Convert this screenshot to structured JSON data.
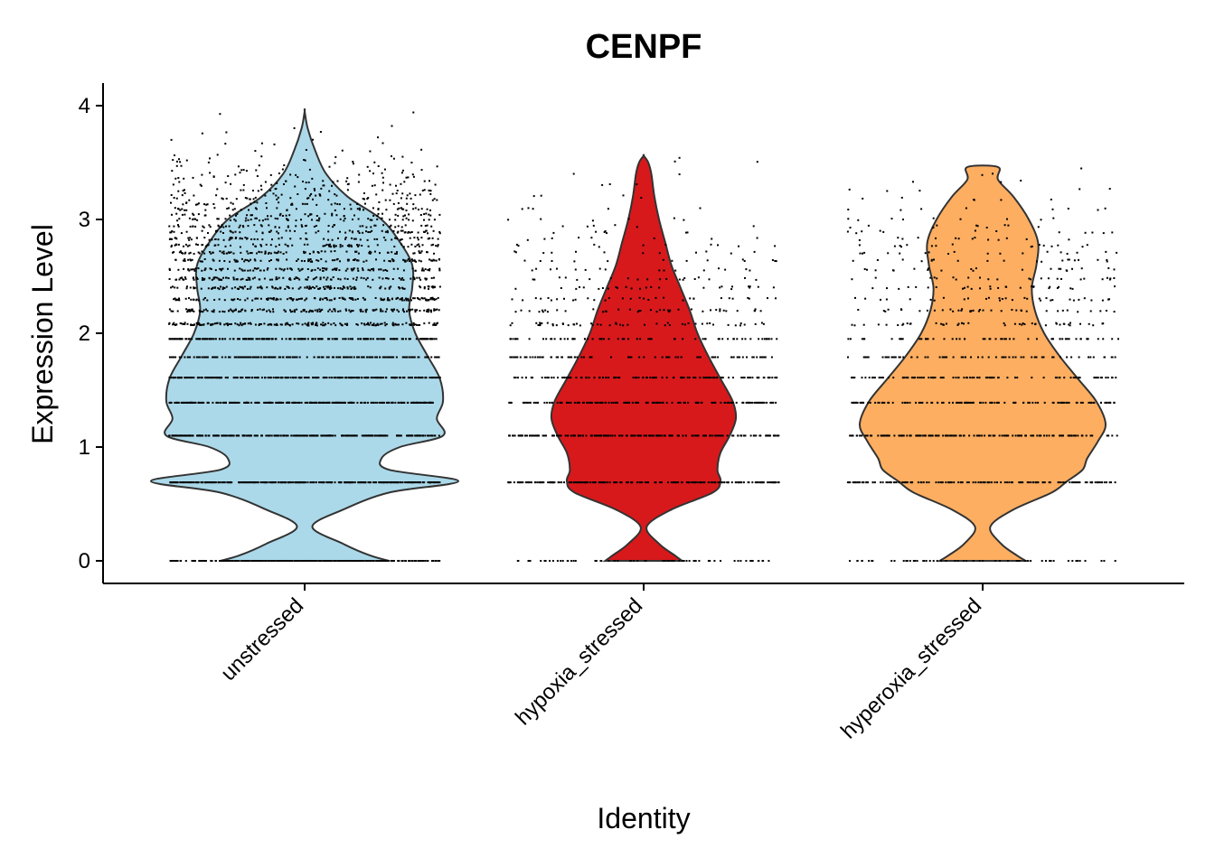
{
  "chart_data": {
    "type": "violin",
    "title": "CENPF",
    "xlabel": "Identity",
    "ylabel": "Expression Level",
    "ylim": [
      -0.2,
      4.2
    ],
    "yticks": [
      0,
      1,
      2,
      3,
      4
    ],
    "categories": [
      "unstressed",
      "hypoxia_stressed",
      "hyperoxia_stressed"
    ],
    "colors": [
      "#ABD9E9",
      "#D7191C",
      "#FDAE61"
    ],
    "outline_color": "#333333",
    "x_tick_rotation_deg": 45,
    "grid": false,
    "legend": "none",
    "violins": [
      {
        "name": "unstressed",
        "ymax": 3.95,
        "density": [
          [
            0,
            0.55
          ],
          [
            0.05,
            0.42
          ],
          [
            0.15,
            0.25
          ],
          [
            0.3,
            0.05
          ],
          [
            0.45,
            0.25
          ],
          [
            0.6,
            0.55
          ],
          [
            0.7,
            1.0
          ],
          [
            0.8,
            0.55
          ],
          [
            0.9,
            0.5
          ],
          [
            1.0,
            0.62
          ],
          [
            1.1,
            0.9
          ],
          [
            1.25,
            0.86
          ],
          [
            1.4,
            0.9
          ],
          [
            1.6,
            0.88
          ],
          [
            1.8,
            0.8
          ],
          [
            2.0,
            0.72
          ],
          [
            2.2,
            0.68
          ],
          [
            2.4,
            0.7
          ],
          [
            2.6,
            0.7
          ],
          [
            2.8,
            0.62
          ],
          [
            3.0,
            0.5
          ],
          [
            3.2,
            0.28
          ],
          [
            3.4,
            0.14
          ],
          [
            3.6,
            0.07
          ],
          [
            3.8,
            0.02
          ],
          [
            3.95,
            0
          ]
        ],
        "points": [
          {
            "y": 0.0,
            "n": 300
          },
          {
            "y": 0.69,
            "n": 320
          },
          {
            "y": 1.1,
            "n": 290
          },
          {
            "y": 1.39,
            "n": 260
          },
          {
            "y": 1.61,
            "n": 230
          },
          {
            "y": 1.79,
            "n": 210
          },
          {
            "y": 1.95,
            "n": 190
          },
          {
            "y": 2.08,
            "n": 170
          },
          {
            "y": 2.2,
            "n": 150
          },
          {
            "y": 2.3,
            "n": 140
          },
          {
            "y": 2.4,
            "n": 130
          },
          {
            "y": 2.48,
            "n": 120
          },
          {
            "y": 2.56,
            "n": 110
          },
          {
            "y": 2.64,
            "n": 100
          },
          {
            "y": 2.71,
            "n": 90
          },
          {
            "y": 2.77,
            "n": 80
          },
          {
            "y": 2.83,
            "n": 75
          },
          {
            "y": 2.89,
            "n": 70
          },
          {
            "y": 2.94,
            "n": 62
          },
          {
            "y": 3.0,
            "n": 55
          },
          {
            "y": 3.04,
            "n": 50
          },
          {
            "y": 3.09,
            "n": 45
          },
          {
            "y": 3.14,
            "n": 38
          },
          {
            "y": 3.18,
            "n": 32
          },
          {
            "y": 3.22,
            "n": 28
          },
          {
            "y": 3.26,
            "n": 24
          },
          {
            "y": 3.3,
            "n": 20
          },
          {
            "y": 3.33,
            "n": 18
          },
          {
            "y": 3.37,
            "n": 15
          },
          {
            "y": 3.4,
            "n": 13
          },
          {
            "y": 3.43,
            "n": 11
          },
          {
            "y": 3.47,
            "n": 9
          },
          {
            "y": 3.5,
            "n": 8
          },
          {
            "y": 3.53,
            "n": 7
          },
          {
            "y": 3.56,
            "n": 6
          },
          {
            "y": 3.61,
            "n": 5
          },
          {
            "y": 3.66,
            "n": 4
          },
          {
            "y": 3.71,
            "n": 3
          },
          {
            "y": 3.76,
            "n": 3
          },
          {
            "y": 3.81,
            "n": 2
          },
          {
            "y": 3.93,
            "n": 2
          }
        ]
      },
      {
        "name": "hypoxia_stressed",
        "ymax": 3.56,
        "density": [
          [
            0,
            0.25
          ],
          [
            0.05,
            0.2
          ],
          [
            0.15,
            0.1
          ],
          [
            0.3,
            0.02
          ],
          [
            0.45,
            0.18
          ],
          [
            0.6,
            0.45
          ],
          [
            0.7,
            0.5
          ],
          [
            0.8,
            0.48
          ],
          [
            0.95,
            0.5
          ],
          [
            1.1,
            0.56
          ],
          [
            1.25,
            0.6
          ],
          [
            1.4,
            0.58
          ],
          [
            1.6,
            0.5
          ],
          [
            1.8,
            0.42
          ],
          [
            2.0,
            0.35
          ],
          [
            2.2,
            0.3
          ],
          [
            2.4,
            0.24
          ],
          [
            2.6,
            0.18
          ],
          [
            2.8,
            0.14
          ],
          [
            3.0,
            0.1
          ],
          [
            3.2,
            0.07
          ],
          [
            3.4,
            0.05
          ],
          [
            3.5,
            0.03
          ],
          [
            3.56,
            0
          ]
        ],
        "points": [
          {
            "y": 0.0,
            "n": 70
          },
          {
            "y": 0.69,
            "n": 200
          },
          {
            "y": 1.1,
            "n": 190
          },
          {
            "y": 1.39,
            "n": 150
          },
          {
            "y": 1.61,
            "n": 110
          },
          {
            "y": 1.79,
            "n": 85
          },
          {
            "y": 1.95,
            "n": 65
          },
          {
            "y": 2.08,
            "n": 50
          },
          {
            "y": 2.2,
            "n": 40
          },
          {
            "y": 2.3,
            "n": 32
          },
          {
            "y": 2.4,
            "n": 26
          },
          {
            "y": 2.48,
            "n": 20
          },
          {
            "y": 2.56,
            "n": 16
          },
          {
            "y": 2.64,
            "n": 14
          },
          {
            "y": 2.71,
            "n": 12
          },
          {
            "y": 2.77,
            "n": 10
          },
          {
            "y": 2.83,
            "n": 8
          },
          {
            "y": 2.89,
            "n": 7
          },
          {
            "y": 2.94,
            "n": 6
          },
          {
            "y": 3.0,
            "n": 6
          },
          {
            "y": 3.09,
            "n": 5
          },
          {
            "y": 3.2,
            "n": 4
          },
          {
            "y": 3.3,
            "n": 3
          },
          {
            "y": 3.4,
            "n": 2
          },
          {
            "y": 3.5,
            "n": 2
          },
          {
            "y": 3.55,
            "n": 1
          }
        ]
      },
      {
        "name": "hyperoxia_stressed",
        "ymax": 3.46,
        "density": [
          [
            0,
            0.28
          ],
          [
            0.05,
            0.22
          ],
          [
            0.15,
            0.12
          ],
          [
            0.3,
            0.05
          ],
          [
            0.45,
            0.2
          ],
          [
            0.6,
            0.45
          ],
          [
            0.7,
            0.55
          ],
          [
            0.8,
            0.65
          ],
          [
            0.9,
            0.68
          ],
          [
            1.05,
            0.75
          ],
          [
            1.2,
            0.8
          ],
          [
            1.4,
            0.74
          ],
          [
            1.6,
            0.62
          ],
          [
            1.8,
            0.5
          ],
          [
            2.0,
            0.4
          ],
          [
            2.2,
            0.34
          ],
          [
            2.4,
            0.32
          ],
          [
            2.6,
            0.35
          ],
          [
            2.8,
            0.36
          ],
          [
            3.0,
            0.3
          ],
          [
            3.2,
            0.2
          ],
          [
            3.35,
            0.1
          ],
          [
            3.46,
            0.1
          ]
        ],
        "points": [
          {
            "y": 0.0,
            "n": 60
          },
          {
            "y": 0.69,
            "n": 140
          },
          {
            "y": 1.1,
            "n": 150
          },
          {
            "y": 1.39,
            "n": 120
          },
          {
            "y": 1.61,
            "n": 90
          },
          {
            "y": 1.79,
            "n": 70
          },
          {
            "y": 1.95,
            "n": 55
          },
          {
            "y": 2.08,
            "n": 45
          },
          {
            "y": 2.2,
            "n": 38
          },
          {
            "y": 2.3,
            "n": 32
          },
          {
            "y": 2.4,
            "n": 28
          },
          {
            "y": 2.48,
            "n": 24
          },
          {
            "y": 2.56,
            "n": 22
          },
          {
            "y": 2.64,
            "n": 20
          },
          {
            "y": 2.71,
            "n": 18
          },
          {
            "y": 2.77,
            "n": 16
          },
          {
            "y": 2.83,
            "n": 14
          },
          {
            "y": 2.89,
            "n": 12
          },
          {
            "y": 2.94,
            "n": 10
          },
          {
            "y": 3.0,
            "n": 9
          },
          {
            "y": 3.09,
            "n": 8
          },
          {
            "y": 3.18,
            "n": 6
          },
          {
            "y": 3.26,
            "n": 5
          },
          {
            "y": 3.33,
            "n": 3
          },
          {
            "y": 3.4,
            "n": 2
          },
          {
            "y": 3.46,
            "n": 1
          }
        ]
      }
    ]
  }
}
